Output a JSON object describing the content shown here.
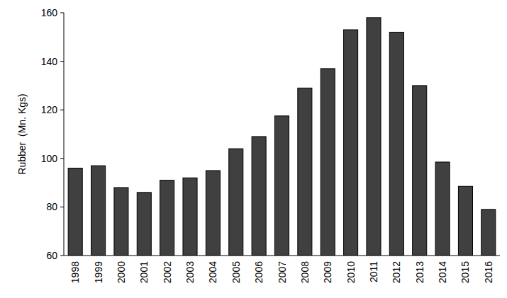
{
  "chart_data": {
    "type": "bar",
    "y_label": "Rubber  (Mn. Kgs)",
    "categories": [
      "1998",
      "1999",
      "2000",
      "2001",
      "2002",
      "2003",
      "2004",
      "2005",
      "2006",
      "2007",
      "2008",
      "2009",
      "2010",
      "2011",
      "2012",
      "2013",
      "2014",
      "2015",
      "2016"
    ],
    "values": [
      96,
      97,
      88,
      86,
      91,
      92,
      95,
      104,
      109,
      117.5,
      129,
      137,
      153,
      158,
      152,
      130,
      98.5,
      88.5,
      79
    ],
    "color": "#404040",
    "ylim": [
      60,
      160
    ],
    "yticks": [
      60,
      80,
      100,
      120,
      140,
      160
    ],
    "grid": false
  }
}
